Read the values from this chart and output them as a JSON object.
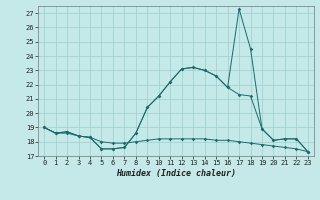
{
  "xlabel": "Humidex (Indice chaleur)",
  "background_color": "#c5e8e8",
  "grid_color": "#9ecece",
  "line_color": "#1a6b6b",
  "xlim": [
    -0.5,
    23.5
  ],
  "ylim": [
    17,
    27.5
  ],
  "yticks": [
    17,
    18,
    19,
    20,
    21,
    22,
    23,
    24,
    25,
    26,
    27
  ],
  "xticks": [
    0,
    1,
    2,
    3,
    4,
    5,
    6,
    7,
    8,
    9,
    10,
    11,
    12,
    13,
    14,
    15,
    16,
    17,
    18,
    19,
    20,
    21,
    22,
    23
  ],
  "series1_x": [
    0,
    1,
    2,
    3,
    4,
    5,
    6,
    7,
    8,
    9,
    10,
    11,
    12,
    13,
    14,
    15,
    16,
    17,
    18,
    19,
    20,
    21,
    22,
    23
  ],
  "series1_y": [
    19.0,
    18.6,
    18.7,
    18.4,
    18.3,
    17.5,
    17.5,
    17.6,
    18.6,
    20.4,
    21.2,
    22.2,
    23.1,
    23.2,
    23.0,
    22.6,
    21.8,
    21.3,
    21.2,
    18.9,
    18.1,
    18.2,
    18.2,
    17.3
  ],
  "series2_x": [
    0,
    1,
    2,
    3,
    4,
    5,
    6,
    7,
    8,
    9,
    10,
    11,
    12,
    13,
    14,
    15,
    16,
    17,
    18,
    19,
    20,
    21,
    22,
    23
  ],
  "series2_y": [
    19.0,
    18.6,
    18.7,
    18.4,
    18.3,
    17.5,
    17.5,
    17.6,
    18.6,
    20.4,
    21.2,
    22.2,
    23.1,
    23.2,
    23.0,
    22.6,
    21.8,
    27.3,
    24.5,
    18.9,
    18.1,
    18.2,
    18.2,
    17.3
  ],
  "series3_x": [
    0,
    1,
    2,
    3,
    4,
    5,
    6,
    7,
    8,
    9,
    10,
    11,
    12,
    13,
    14,
    15,
    16,
    17,
    18,
    19,
    20,
    21,
    22,
    23
  ],
  "series3_y": [
    19.0,
    18.6,
    18.6,
    18.4,
    18.3,
    18.0,
    17.9,
    17.9,
    18.0,
    18.1,
    18.2,
    18.2,
    18.2,
    18.2,
    18.2,
    18.1,
    18.1,
    18.0,
    17.9,
    17.8,
    17.7,
    17.6,
    17.5,
    17.3
  ]
}
